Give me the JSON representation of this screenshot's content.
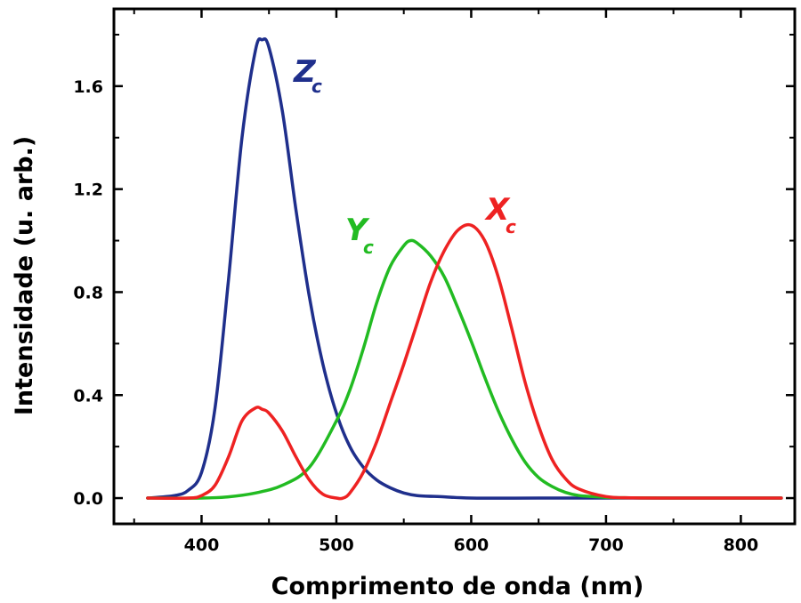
{
  "chart_data": {
    "type": "line",
    "title": "",
    "xlabel": "Comprimento de onda (nm)",
    "ylabel": "Intensidade (u. arb.)",
    "xlim": [
      335,
      840
    ],
    "ylim": [
      -0.1,
      1.9
    ],
    "xticks": [
      400,
      500,
      600,
      700,
      800
    ],
    "yticks": [
      0.0,
      0.4,
      0.8,
      1.2,
      1.6
    ],
    "xtick_labels": [
      "400",
      "500",
      "600",
      "700",
      "800"
    ],
    "ytick_labels": [
      "0.0",
      "0.4",
      "0.8",
      "1.2",
      "1.6"
    ],
    "grid": false,
    "legend": "none",
    "series": [
      {
        "label_main": "Z",
        "label_sub": "c",
        "color": "#1f2f8c",
        "x": [
          360,
          380,
          390,
          400,
          410,
          420,
          430,
          440,
          445,
          450,
          460,
          470,
          480,
          490,
          500,
          510,
          520,
          530,
          540,
          550,
          560,
          580,
          600,
          650,
          700,
          750,
          830
        ],
        "y": [
          0.0,
          0.01,
          0.03,
          0.1,
          0.35,
          0.85,
          1.4,
          1.74,
          1.78,
          1.75,
          1.5,
          1.12,
          0.78,
          0.52,
          0.33,
          0.2,
          0.12,
          0.07,
          0.04,
          0.02,
          0.01,
          0.005,
          0.0,
          0.0,
          0.0,
          0.0,
          0.0
        ]
      },
      {
        "label_main": "Y",
        "label_sub": "c",
        "color": "#22bb22",
        "x": [
          360,
          400,
          420,
          440,
          460,
          480,
          500,
          510,
          520,
          530,
          540,
          550,
          555,
          560,
          570,
          580,
          590,
          600,
          610,
          620,
          630,
          640,
          650,
          660,
          670,
          680,
          700,
          720,
          750,
          830
        ],
        "y": [
          0.0,
          0.0,
          0.005,
          0.02,
          0.05,
          0.12,
          0.3,
          0.42,
          0.58,
          0.76,
          0.9,
          0.98,
          1.0,
          0.99,
          0.94,
          0.86,
          0.74,
          0.61,
          0.47,
          0.34,
          0.23,
          0.14,
          0.08,
          0.045,
          0.022,
          0.01,
          0.003,
          0.001,
          0.0,
          0.0
        ]
      },
      {
        "label_main": "X",
        "label_sub": "c",
        "color": "#ee2222",
        "x": [
          360,
          390,
          400,
          410,
          420,
          430,
          440,
          445,
          450,
          460,
          470,
          480,
          490,
          500,
          505,
          510,
          520,
          530,
          540,
          550,
          560,
          570,
          580,
          590,
          600,
          610,
          620,
          630,
          640,
          650,
          660,
          670,
          680,
          700,
          720,
          750,
          830
        ],
        "y": [
          0.0,
          0.0,
          0.01,
          0.05,
          0.16,
          0.3,
          0.35,
          0.345,
          0.33,
          0.26,
          0.16,
          0.07,
          0.015,
          0.0,
          0.0,
          0.02,
          0.1,
          0.22,
          0.37,
          0.52,
          0.68,
          0.84,
          0.96,
          1.04,
          1.06,
          1.0,
          0.86,
          0.66,
          0.45,
          0.28,
          0.15,
          0.075,
          0.035,
          0.006,
          0.001,
          0.0,
          0.0
        ]
      }
    ]
  }
}
